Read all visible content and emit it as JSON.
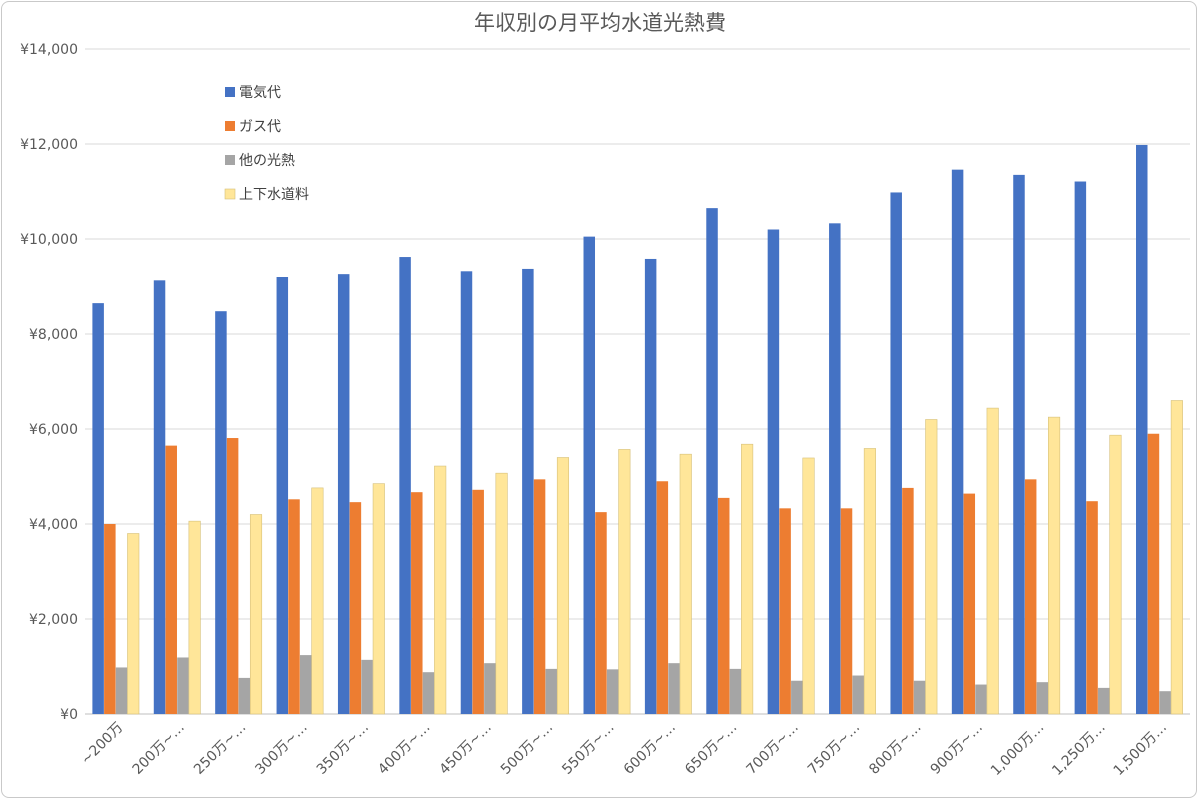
{
  "chart_data": {
    "type": "bar",
    "title": "年収別の月平均水道光熱費",
    "xlabel": "",
    "ylabel": "",
    "ylim": [
      0,
      14000
    ],
    "y_ticks": [
      "¥0",
      "¥2,000",
      "¥4,000",
      "¥6,000",
      "¥8,000",
      "¥10,000",
      "¥12,000",
      "¥14,000"
    ],
    "grid": true,
    "legend_position": "top-left",
    "categories": [
      "~200万",
      "200万~…",
      "250万~…",
      "300万~…",
      "350万~…",
      "400万~…",
      "450万~…",
      "500万~…",
      "550万~…",
      "600万~…",
      "650万~…",
      "700万~…",
      "750万~…",
      "800万~…",
      "900万~…",
      "1,000万…",
      "1,250万…",
      "1,500万…"
    ],
    "series": [
      {
        "name": "電気代",
        "color": "#4472c4",
        "values": [
          8650,
          9130,
          8480,
          9200,
          9260,
          9620,
          9320,
          9370,
          10050,
          9580,
          10650,
          10200,
          10330,
          10980,
          11460,
          11350,
          11210,
          11980
        ]
      },
      {
        "name": "ガス代",
        "color": "#ed7d31",
        "values": [
          4000,
          5650,
          5810,
          4520,
          4460,
          4670,
          4720,
          4940,
          4250,
          4900,
          4550,
          4330,
          4330,
          4760,
          4640,
          4940,
          4480,
          5900
        ]
      },
      {
        "name": "他の光熱",
        "color": "#a5a5a5",
        "values": [
          980,
          1190,
          760,
          1240,
          1140,
          880,
          1070,
          950,
          940,
          1070,
          950,
          700,
          810,
          700,
          620,
          670,
          550,
          480
        ]
      },
      {
        "name": "上下水道料",
        "color": "#ffe699",
        "values": [
          3800,
          4060,
          4200,
          4760,
          4850,
          5220,
          5070,
          5400,
          5570,
          5470,
          5680,
          5390,
          5590,
          6200,
          6440,
          6250,
          5870,
          6600
        ]
      }
    ]
  }
}
